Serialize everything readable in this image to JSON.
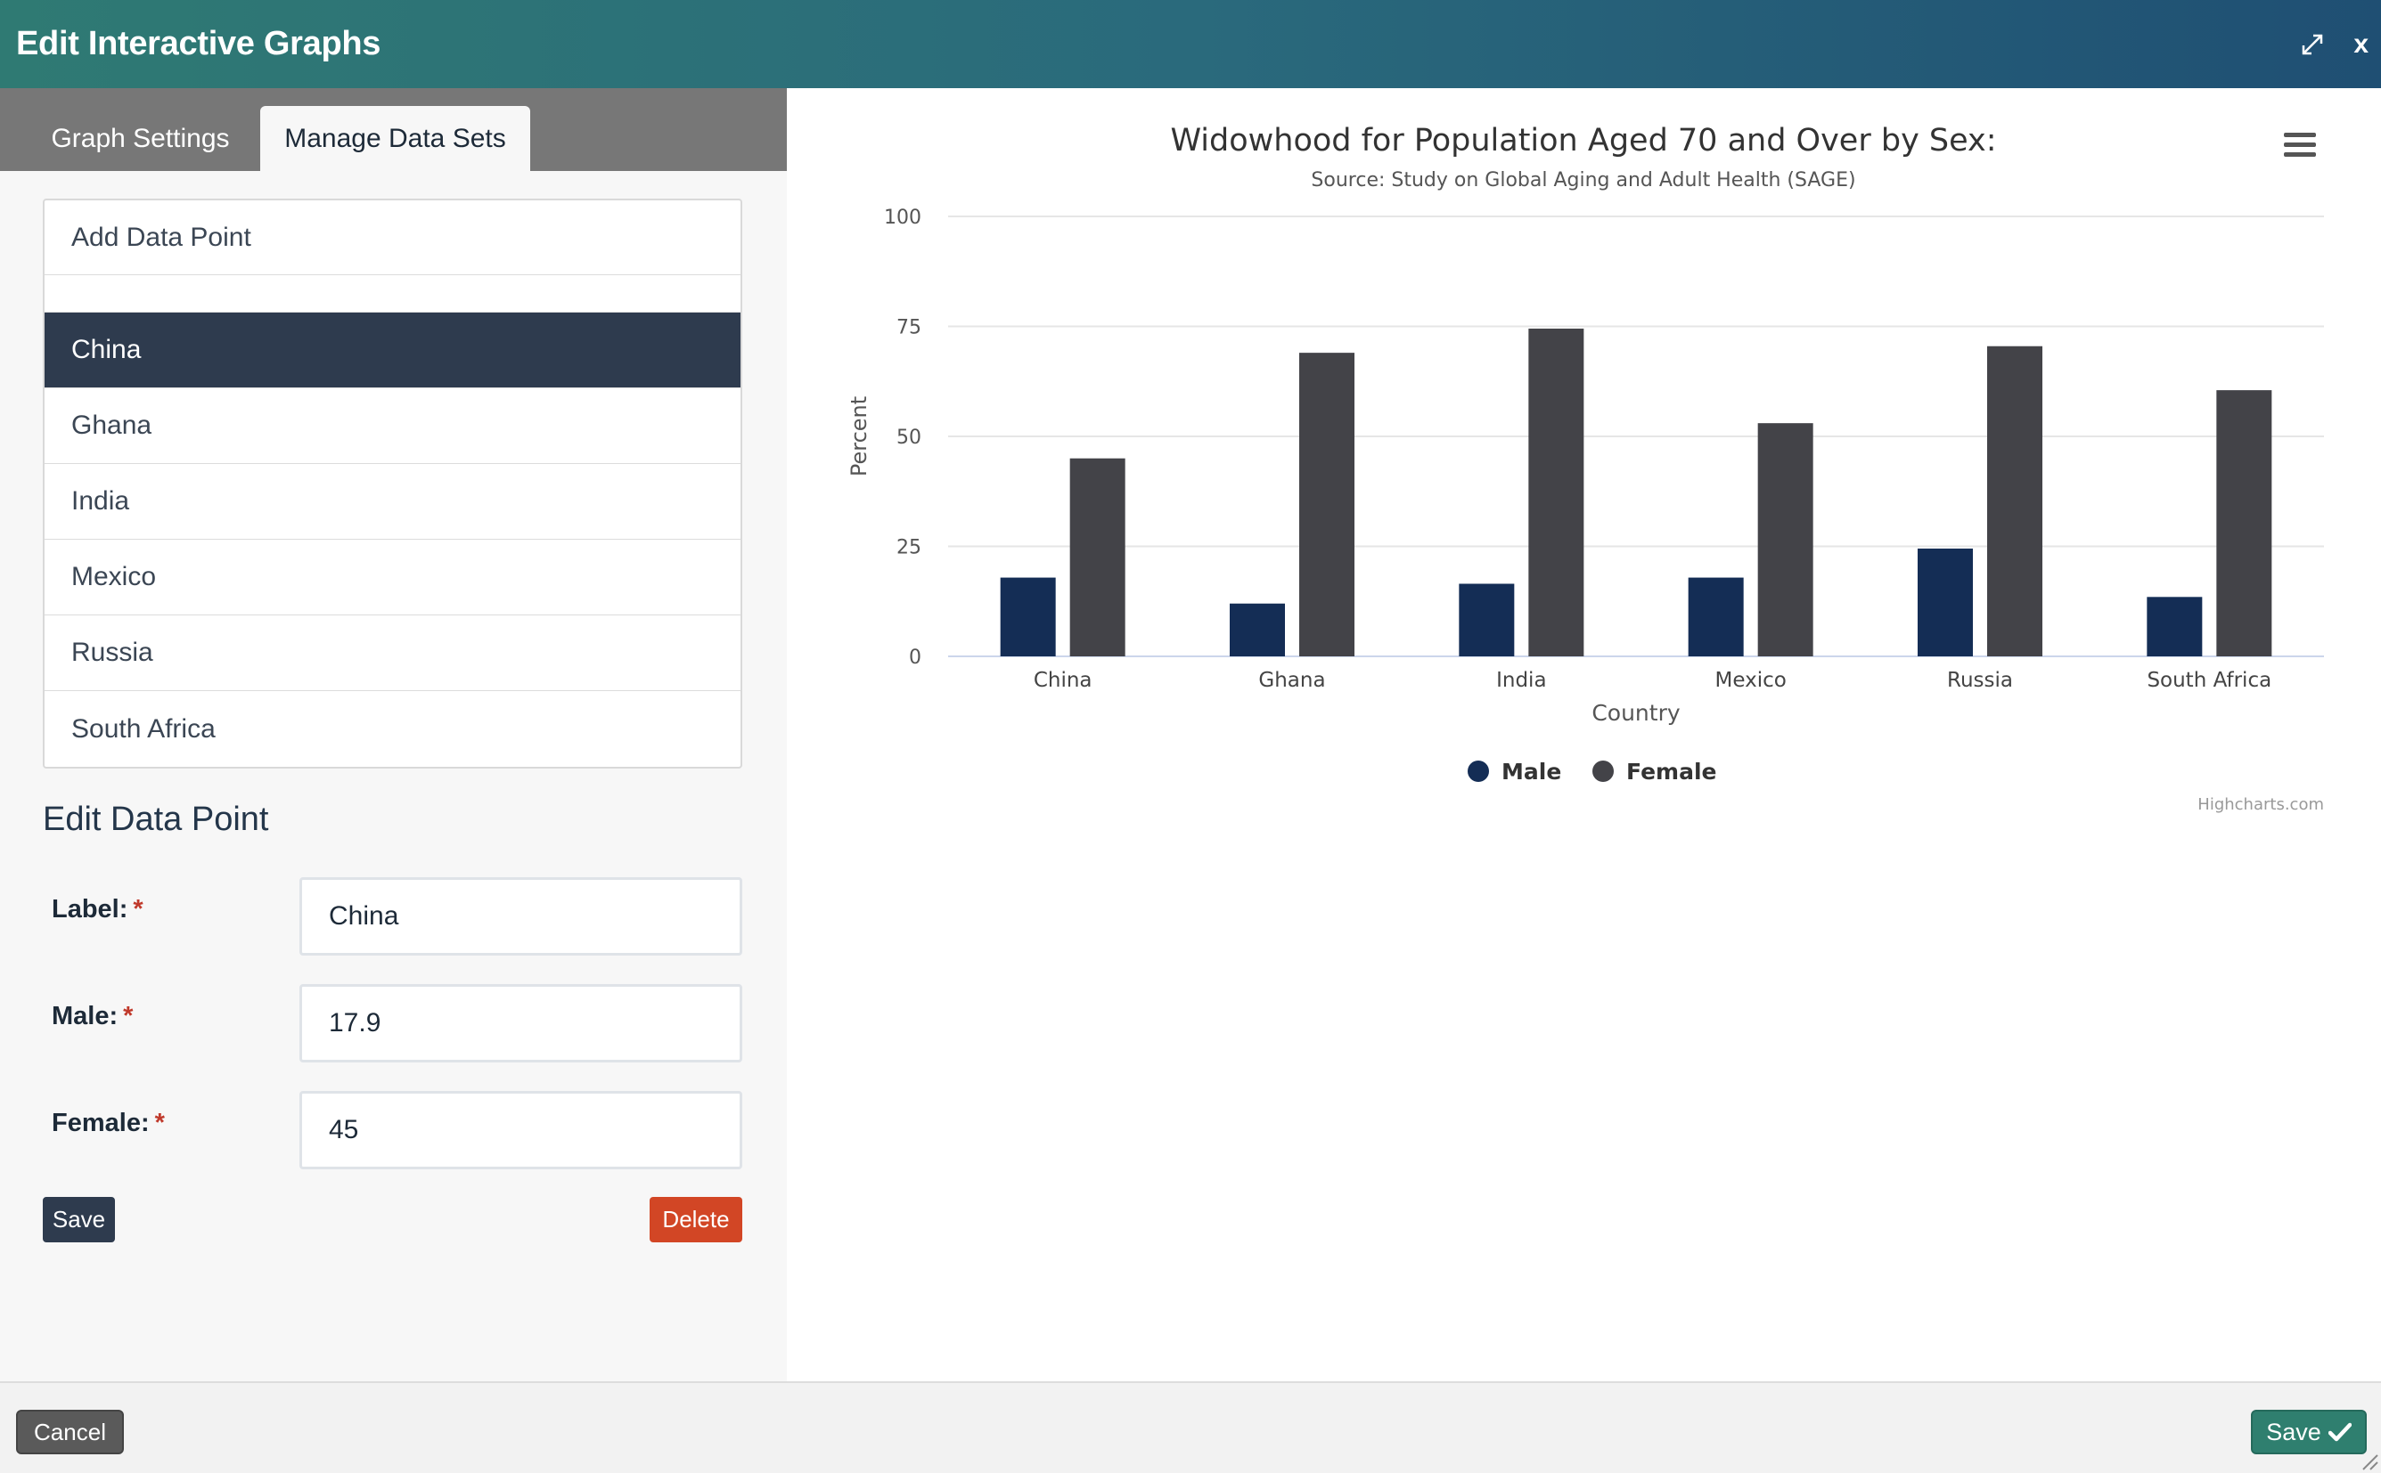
{
  "header": {
    "title": "Edit Interactive Graphs",
    "expand_icon": "expand-icon",
    "close_label": "x"
  },
  "tabs": [
    {
      "label": "Graph Settings",
      "active": false
    },
    {
      "label": "Manage Data Sets",
      "active": true
    }
  ],
  "data_points": {
    "add_label": "Add Data Point",
    "items": [
      "China",
      "Ghana",
      "India",
      "Mexico",
      "Russia",
      "South Africa"
    ],
    "selected": "China"
  },
  "edit_form": {
    "title": "Edit Data Point",
    "label_label": "Label:",
    "label_value": "China",
    "male_label": "Male:",
    "male_value": "17.9",
    "female_label": "Female:",
    "female_value": "45",
    "required_mark": "*",
    "save_label": "Save",
    "delete_label": "Delete"
  },
  "footer": {
    "cancel_label": "Cancel",
    "save_label": "Save"
  },
  "colors": {
    "male": "#142d55",
    "female": "#434348",
    "selected_bg": "#2e3b4e",
    "delete": "#d24625",
    "save_main": "#2f7f6f"
  },
  "chart_data": {
    "type": "bar",
    "title": "Widowhood for Population Aged 70 and Over by Sex:",
    "subtitle": "Source: Study on Global Aging and Adult Health (SAGE)",
    "xlabel": "Country",
    "ylabel": "Percent",
    "categories": [
      "China",
      "Ghana",
      "India",
      "Mexico",
      "Russia",
      "South Africa"
    ],
    "series": [
      {
        "name": "Male",
        "color": "#142d55",
        "values": [
          17.9,
          12,
          16.5,
          17.9,
          24.5,
          13.5
        ]
      },
      {
        "name": "Female",
        "color": "#434348",
        "values": [
          45,
          69,
          74.5,
          53,
          70.5,
          60.5
        ]
      }
    ],
    "ylim": [
      0,
      100
    ],
    "yticks": [
      0,
      25,
      50,
      75,
      100
    ],
    "grid": true,
    "legend": "bottom-center",
    "credits": "Highcharts.com"
  }
}
